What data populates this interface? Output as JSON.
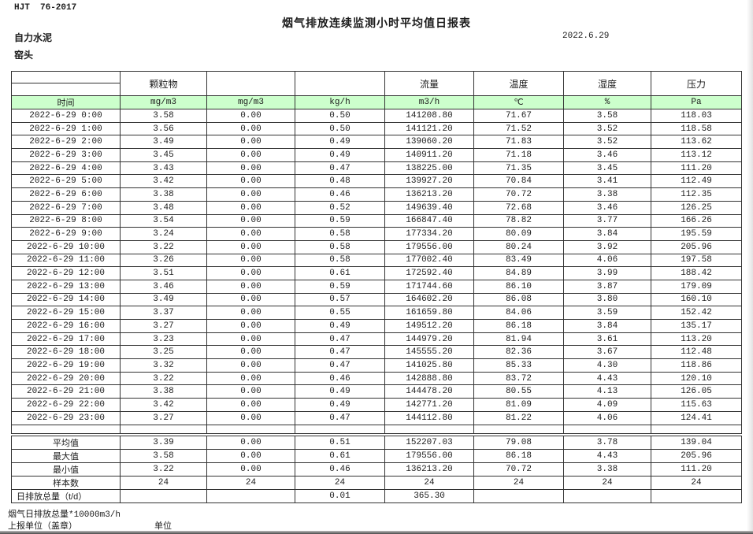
{
  "header": {
    "doc_code": "HJT  76-2017",
    "title": "烟气排放连续监测小时平均值日报表",
    "date": "2022.6.29",
    "company": "自力水泥",
    "point": "窑头"
  },
  "table": {
    "group_headers": [
      "",
      "颗粒物",
      "",
      "",
      "流量",
      "温度",
      "湿度",
      "压力"
    ],
    "unit_headers": [
      "时间",
      "mg/m3",
      "mg/m3",
      "kg/h",
      "m3/h",
      "℃",
      "%",
      "Pa"
    ],
    "rows": [
      [
        "2022-6-29 0:00",
        "3.58",
        "0.00",
        "0.50",
        "141208.80",
        "71.67",
        "3.58",
        "118.03"
      ],
      [
        "2022-6-29 1:00",
        "3.56",
        "0.00",
        "0.50",
        "141121.20",
        "71.52",
        "3.52",
        "118.58"
      ],
      [
        "2022-6-29 2:00",
        "3.49",
        "0.00",
        "0.49",
        "139060.20",
        "71.83",
        "3.52",
        "113.62"
      ],
      [
        "2022-6-29 3:00",
        "3.45",
        "0.00",
        "0.49",
        "140911.20",
        "71.18",
        "3.46",
        "113.12"
      ],
      [
        "2022-6-29 4:00",
        "3.43",
        "0.00",
        "0.47",
        "138225.00",
        "71.35",
        "3.45",
        "111.20"
      ],
      [
        "2022-6-29 5:00",
        "3.42",
        "0.00",
        "0.48",
        "139927.20",
        "70.84",
        "3.41",
        "112.49"
      ],
      [
        "2022-6-29 6:00",
        "3.38",
        "0.00",
        "0.46",
        "136213.20",
        "70.72",
        "3.38",
        "112.35"
      ],
      [
        "2022-6-29 7:00",
        "3.48",
        "0.00",
        "0.52",
        "149639.40",
        "72.68",
        "3.46",
        "126.25"
      ],
      [
        "2022-6-29 8:00",
        "3.54",
        "0.00",
        "0.59",
        "166847.40",
        "78.82",
        "3.77",
        "166.26"
      ],
      [
        "2022-6-29 9:00",
        "3.24",
        "0.00",
        "0.58",
        "177334.20",
        "80.09",
        "3.84",
        "195.59"
      ],
      [
        "2022-6-29 10:00",
        "3.22",
        "0.00",
        "0.58",
        "179556.00",
        "80.24",
        "3.92",
        "205.96"
      ],
      [
        "2022-6-29 11:00",
        "3.26",
        "0.00",
        "0.58",
        "177002.40",
        "83.49",
        "4.06",
        "197.58"
      ],
      [
        "2022-6-29 12:00",
        "3.51",
        "0.00",
        "0.61",
        "172592.40",
        "84.89",
        "3.99",
        "188.42"
      ],
      [
        "2022-6-29 13:00",
        "3.46",
        "0.00",
        "0.59",
        "171744.60",
        "86.10",
        "3.87",
        "179.09"
      ],
      [
        "2022-6-29 14:00",
        "3.49",
        "0.00",
        "0.57",
        "164602.20",
        "86.08",
        "3.80",
        "160.10"
      ],
      [
        "2022-6-29 15:00",
        "3.37",
        "0.00",
        "0.55",
        "161659.80",
        "84.06",
        "3.59",
        "152.42"
      ],
      [
        "2022-6-29 16:00",
        "3.27",
        "0.00",
        "0.49",
        "149512.20",
        "86.18",
        "3.84",
        "135.17"
      ],
      [
        "2022-6-29 17:00",
        "3.23",
        "0.00",
        "0.47",
        "144979.20",
        "81.94",
        "3.61",
        "113.20"
      ],
      [
        "2022-6-29 18:00",
        "3.25",
        "0.00",
        "0.47",
        "145555.20",
        "82.36",
        "3.67",
        "112.48"
      ],
      [
        "2022-6-29 19:00",
        "3.32",
        "0.00",
        "0.47",
        "141025.80",
        "85.33",
        "4.30",
        "118.86"
      ],
      [
        "2022-6-29 20:00",
        "3.22",
        "0.00",
        "0.46",
        "142888.80",
        "83.72",
        "4.43",
        "120.10"
      ],
      [
        "2022-6-29 21:00",
        "3.38",
        "0.00",
        "0.49",
        "144478.20",
        "80.55",
        "4.13",
        "126.05"
      ],
      [
        "2022-6-29 22:00",
        "3.42",
        "0.00",
        "0.49",
        "142771.20",
        "81.09",
        "4.09",
        "115.63"
      ],
      [
        "2022-6-29 23:00",
        "3.27",
        "0.00",
        "0.47",
        "144112.80",
        "81.22",
        "4.06",
        "124.41"
      ]
    ],
    "summary_rows": [
      [
        "平均值",
        "3.39",
        "0.00",
        "0.51",
        "152207.03",
        "79.08",
        "3.78",
        "139.04"
      ],
      [
        "最大值",
        "3.58",
        "0.00",
        "0.61",
        "179556.00",
        "86.18",
        "4.43",
        "205.96"
      ],
      [
        "最小值",
        "3.22",
        "0.00",
        "0.46",
        "136213.20",
        "70.72",
        "3.38",
        "111.20"
      ],
      [
        "样本数",
        "24",
        "24",
        "24",
        "24",
        "24",
        "24",
        "24"
      ],
      [
        "日排放总量（t/d）",
        "",
        "",
        "0.01",
        "365.30",
        "",
        "",
        ""
      ]
    ]
  },
  "footer": {
    "note": "烟气日排放总量*10000m3/h",
    "report_unit_label": "上报单位（盖章）",
    "unit_label": "单位"
  },
  "colors": {
    "header_green": "#ccffcc",
    "grid_border": "#333333"
  }
}
